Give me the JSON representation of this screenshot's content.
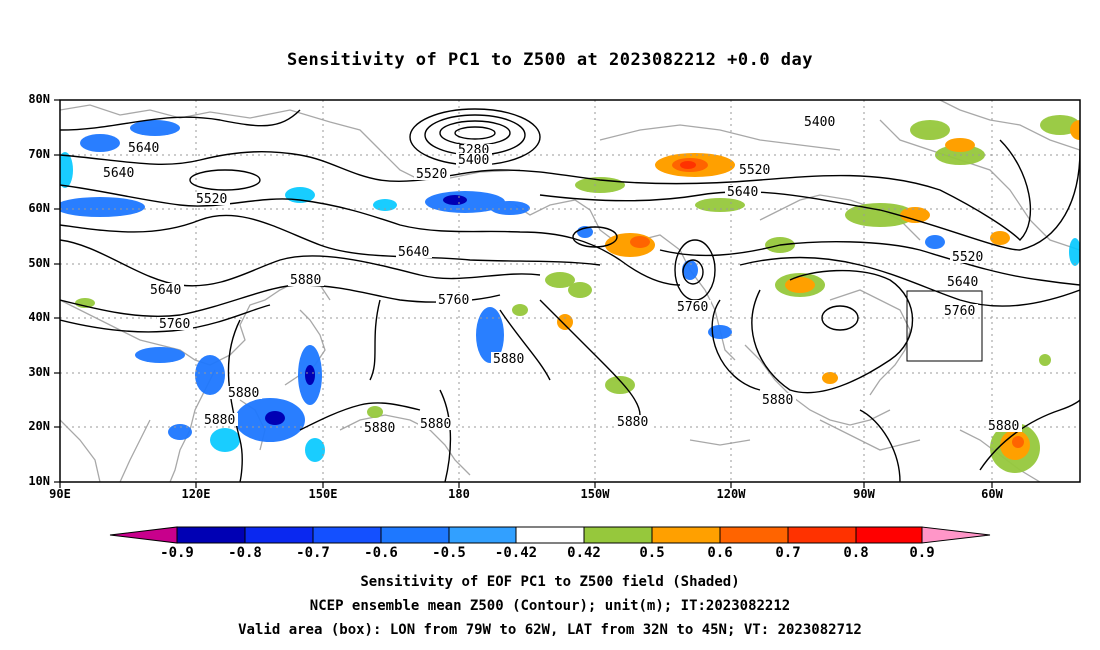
{
  "title": "Sensitivity of PC1 to Z500 at 2023082212 +0.0 day",
  "lat_ticks": [
    "80N",
    "70N",
    "60N",
    "50N",
    "40N",
    "30N",
    "20N",
    "10N"
  ],
  "lon_ticks": [
    "90E",
    "120E",
    "150E",
    "180",
    "150W",
    "120W",
    "90W",
    "60W"
  ],
  "contour_labels": [
    {
      "text": "5640"
    },
    {
      "text": "5640"
    },
    {
      "text": "5520"
    },
    {
      "text": "5280"
    },
    {
      "text": "5400"
    },
    {
      "text": "5520"
    },
    {
      "text": "5400"
    },
    {
      "text": "5520"
    },
    {
      "text": "5640"
    },
    {
      "text": "5640"
    },
    {
      "text": "5640"
    },
    {
      "text": "5880"
    },
    {
      "text": "5760"
    },
    {
      "text": "5760"
    },
    {
      "text": "5880"
    },
    {
      "text": "5880"
    },
    {
      "text": "5880"
    },
    {
      "text": "5880"
    },
    {
      "text": "5880"
    },
    {
      "text": "5760"
    },
    {
      "text": "5880"
    },
    {
      "text": "5880"
    },
    {
      "text": "5520"
    },
    {
      "text": "5640"
    },
    {
      "text": "5760"
    },
    {
      "text": "5880"
    }
  ],
  "colorbar": {
    "labels": [
      "-0.9",
      "-0.8",
      "-0.7",
      "-0.6",
      "-0.5",
      "-0.42",
      "0.42",
      "0.5",
      "0.6",
      "0.7",
      "0.8",
      "0.9"
    ],
    "colors": [
      "#0000b4",
      "#0a28f0",
      "#1450ff",
      "#1e78ff",
      "#32a0ff",
      "#00c8ff",
      "#ffffff",
      "#96c83c",
      "#ffa000",
      "#ff6400",
      "#ff3200",
      "#ff0000"
    ],
    "low_end_color": "#c8008c",
    "high_end_color": "#ff96c8"
  },
  "caption": {
    "line1": "Sensitivity of EOF PC1 to Z500 field (Shaded)",
    "line2": "NCEP ensemble mean Z500 (Contour); unit(m); IT:2023082212",
    "line3": "Valid area (box): LON from 79W to 62W, LAT from 32N to 45N; VT: 2023082712"
  }
}
